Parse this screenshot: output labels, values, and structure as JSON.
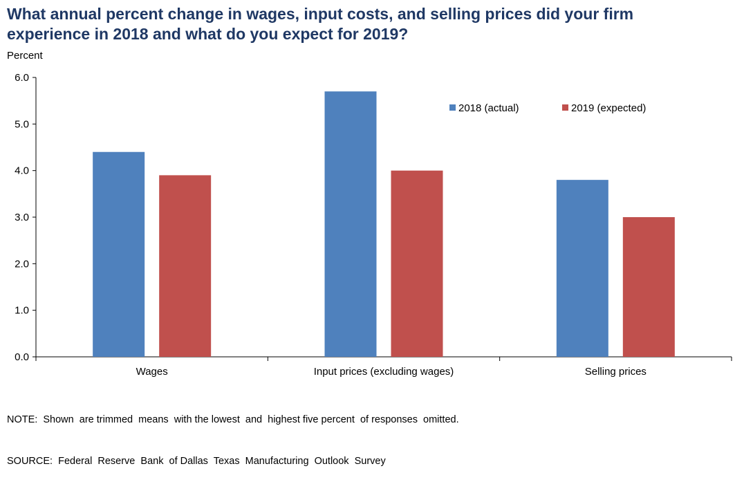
{
  "title_lines": [
    "What annual percent change in wages, input costs, and selling prices did your firm",
    "experience  in 2018 and what do you expect for 2019?"
  ],
  "notes": [
    "NOTE:  Shown  are trimmed  means  with the lowest  and  highest five percent  of responses  omitted.",
    "SOURCE:  Federal  Reserve  Bank  of Dallas  Texas  Manufacturing  Outlook  Survey"
  ],
  "chart_data": {
    "type": "bar",
    "title": "What annual percent change in wages, input costs, and selling prices did your firm experience in 2018 and what do you expect for 2019?",
    "ylabel": "Percent",
    "xlabel": "",
    "ylim": [
      0,
      6
    ],
    "yticks": [
      "0.0",
      "1.0",
      "2.0",
      "3.0",
      "4.0",
      "5.0",
      "6.0"
    ],
    "categories": [
      "Wages",
      "Input prices (excluding wages)",
      "Selling prices"
    ],
    "series": [
      {
        "name": "2018 (actual)",
        "color": "#4f81bd",
        "values": [
          4.4,
          5.7,
          3.8
        ]
      },
      {
        "name": "2019 (expected)",
        "color": "#c0504d",
        "values": [
          3.9,
          4.0,
          3.0
        ]
      }
    ],
    "grid": false,
    "legend": "top-right"
  }
}
